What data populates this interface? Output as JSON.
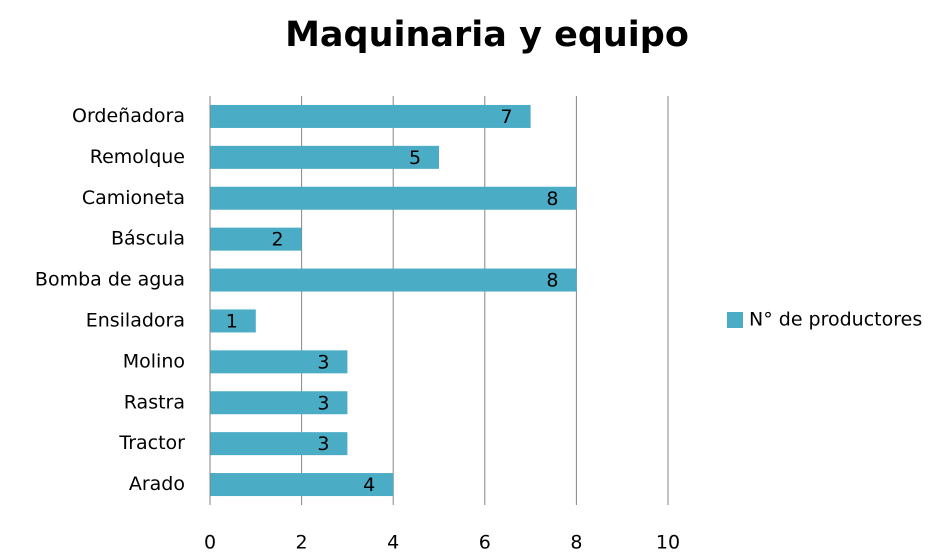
{
  "chart_data": {
    "type": "bar",
    "orientation": "horizontal",
    "title": "Maquinaria y equipo",
    "categories": [
      "Ordeñadora",
      "Remolque",
      "Camioneta",
      "Báscula",
      "Bomba de agua",
      "Ensiladora",
      "Molino",
      "Rastra",
      "Tractor",
      "Arado"
    ],
    "series": [
      {
        "name": "N° de productores",
        "color": "#4bacc6",
        "values": [
          7,
          5,
          8,
          2,
          8,
          1,
          3,
          3,
          3,
          4
        ]
      }
    ],
    "xlim": [
      0,
      10
    ],
    "xticks": [
      0,
      2,
      4,
      6,
      8,
      10
    ],
    "grid": true,
    "legend": "right"
  }
}
